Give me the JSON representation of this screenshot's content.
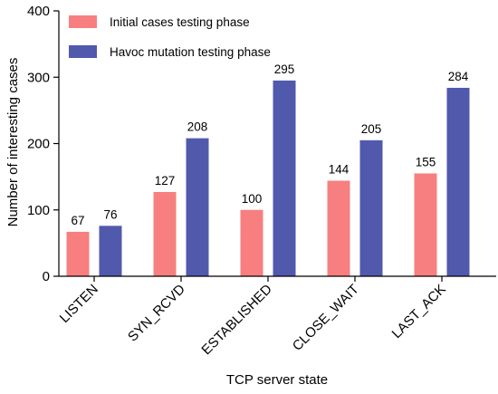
{
  "chart_data": {
    "type": "bar",
    "categories": [
      "LISTEN",
      "SYN_RCVD",
      "ESTABLISHED",
      "CLOSE_WAIT",
      "LAST_ACK"
    ],
    "series": [
      {
        "name": "Initial cases testing phase",
        "color": "#f77f7f",
        "values": [
          67,
          127,
          100,
          144,
          155
        ]
      },
      {
        "name": "Havoc mutation testing phase",
        "color": "#5159ad",
        "values": [
          76,
          208,
          295,
          205,
          284
        ]
      }
    ],
    "xlabel": "TCP server  state",
    "ylabel": "Number of interesting cases",
    "ylim": [
      0,
      400
    ],
    "yticks": [
      0,
      100,
      200,
      300,
      400
    ],
    "grid": false,
    "legend": "top-left",
    "data_labels": true
  }
}
